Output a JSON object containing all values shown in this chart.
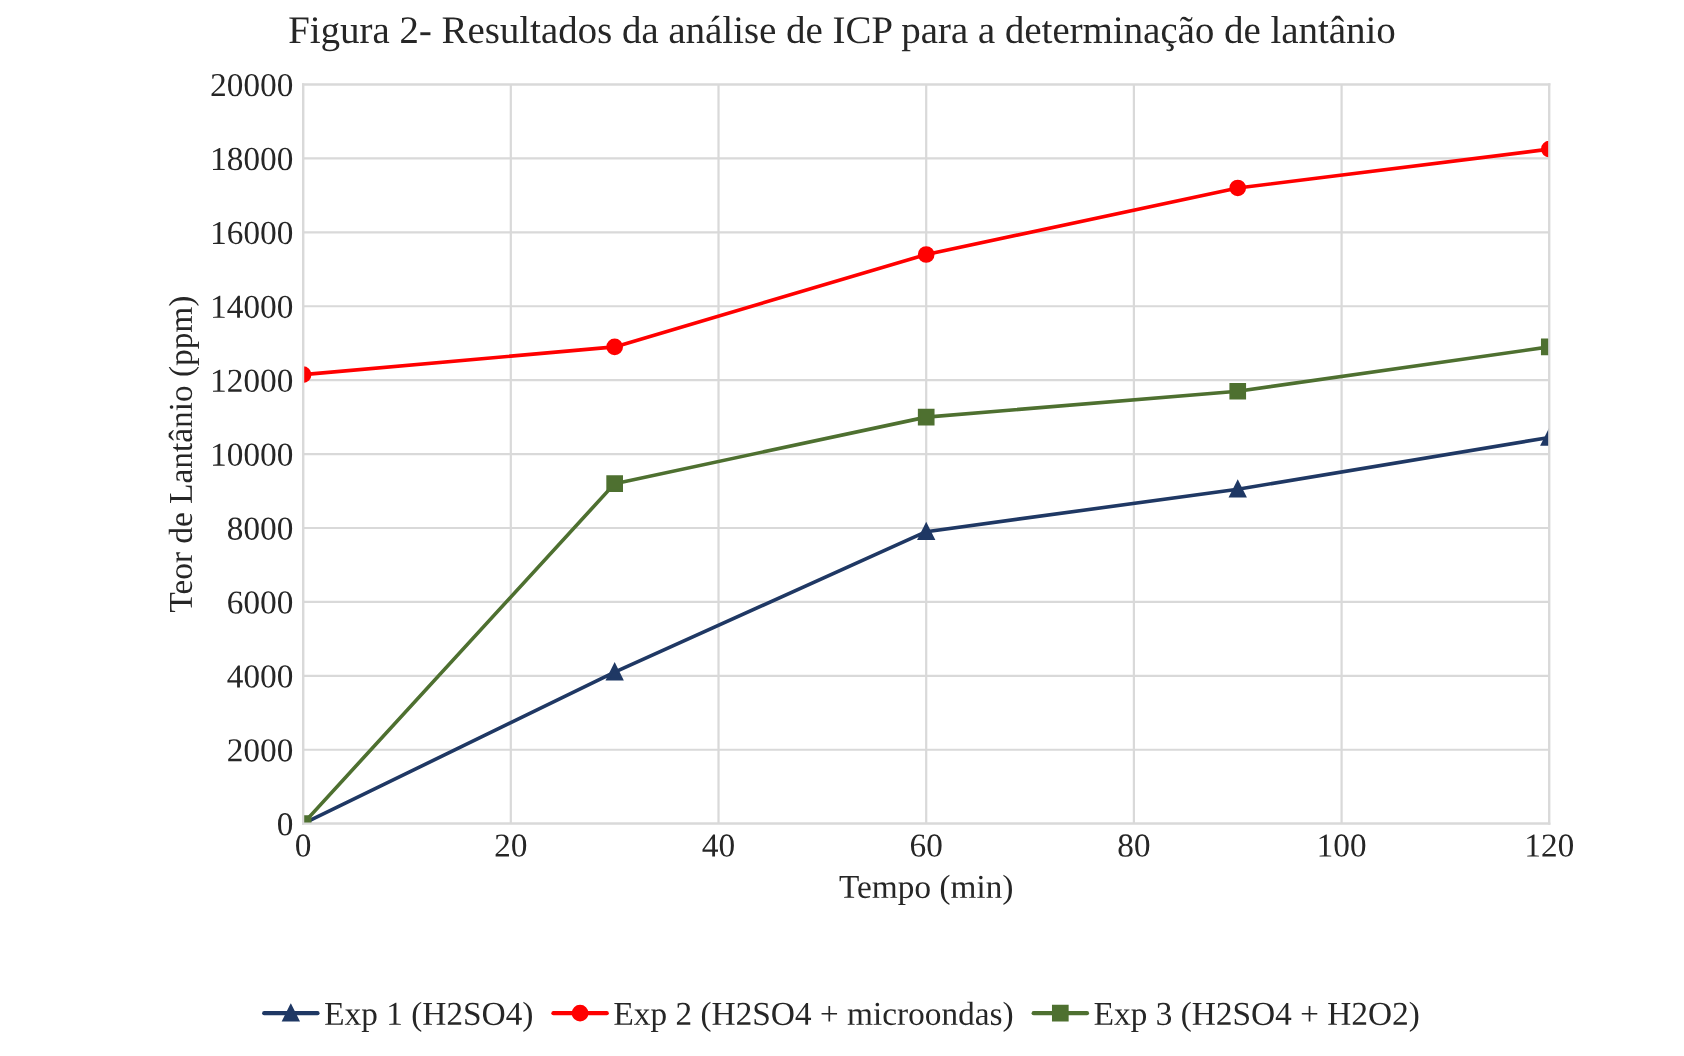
{
  "chart_data": {
    "type": "line",
    "title": "Figura 2- Resultados da análise de ICP para a determinação de lantânio",
    "xlabel": "Tempo (min)",
    "ylabel": "Teor de Lantânio (ppm)",
    "x": [
      0,
      30,
      60,
      90,
      120
    ],
    "series": [
      {
        "name": "Exp 1 (H2SO4)",
        "color": "#1f3864",
        "marker": "triangle",
        "values": [
          0,
          4100,
          7900,
          9050,
          10450
        ]
      },
      {
        "name": "Exp 2 (H2SO4 + microondas)",
        "color": "#ff0000",
        "marker": "circle",
        "values": [
          12150,
          12900,
          15400,
          17200,
          18250
        ]
      },
      {
        "name": "Exp 3 (H2SO4 + H2O2)",
        "color": "#4e7030",
        "marker": "square",
        "values": [
          0,
          9200,
          11000,
          11700,
          12900
        ]
      }
    ],
    "xlim": [
      0,
      120
    ],
    "xticks": [
      0,
      20,
      40,
      60,
      80,
      100,
      120
    ],
    "ylim": [
      0,
      20000
    ],
    "yticks": [
      0,
      2000,
      4000,
      6000,
      8000,
      10000,
      12000,
      14000,
      16000,
      18000,
      20000
    ],
    "grid": true,
    "legend": "bottom",
    "line_style": "solid"
  }
}
